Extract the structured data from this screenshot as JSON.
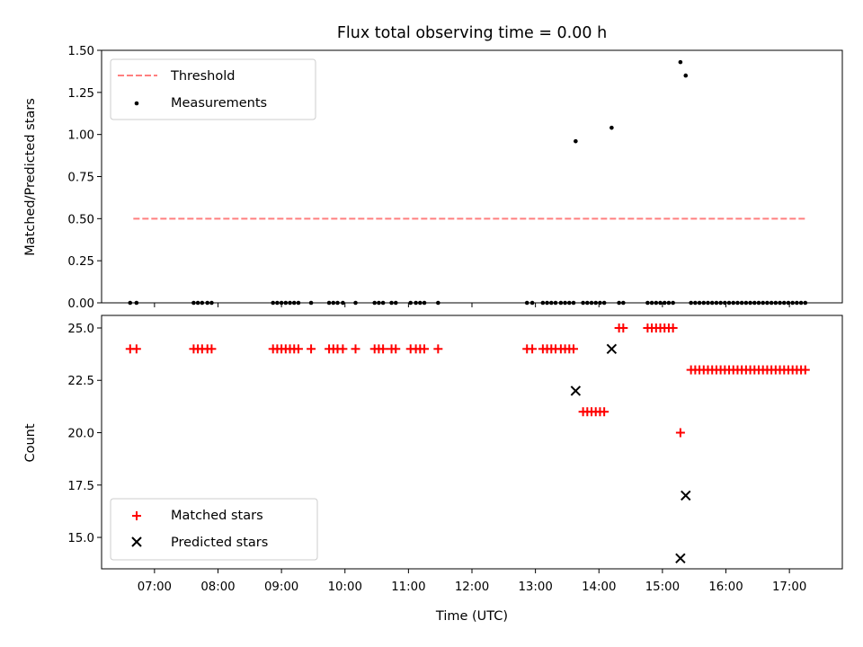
{
  "chart_data": [
    {
      "type": "scatter",
      "title": "Flux total observing time = 0.00 h",
      "xlabel": "",
      "ylabel": "Matched/Predicted stars",
      "xlim": [
        "06:10",
        "17:50"
      ],
      "ylim": [
        0,
        1.5
      ],
      "yticks": [
        "0.00",
        "0.25",
        "0.50",
        "0.75",
        "1.00",
        "1.25",
        "1.50"
      ],
      "legend_position": "top-left",
      "threshold": {
        "name": "Threshold",
        "y": 0.5,
        "x_start": "06:40",
        "x_end": "17:15",
        "color": "#ff7f7f",
        "style": "dashed"
      },
      "series": [
        {
          "name": "Measurements",
          "color": "#000000",
          "points": [
            [
              "06:37",
              0
            ],
            [
              "06:43",
              0
            ],
            [
              "07:37",
              0
            ],
            [
              "07:41",
              0
            ],
            [
              "07:45",
              0
            ],
            [
              "07:50",
              0
            ],
            [
              "07:54",
              0
            ],
            [
              "08:52",
              0
            ],
            [
              "08:56",
              0
            ],
            [
              "09:00",
              0
            ],
            [
              "09:04",
              0
            ],
            [
              "09:08",
              0
            ],
            [
              "09:12",
              0
            ],
            [
              "09:16",
              0
            ],
            [
              "09:28",
              0
            ],
            [
              "09:45",
              0
            ],
            [
              "09:49",
              0
            ],
            [
              "09:53",
              0
            ],
            [
              "09:58",
              0
            ],
            [
              "10:10",
              0
            ],
            [
              "10:28",
              0
            ],
            [
              "10:32",
              0
            ],
            [
              "10:36",
              0
            ],
            [
              "10:44",
              0
            ],
            [
              "10:48",
              0
            ],
            [
              "11:02",
              0
            ],
            [
              "11:07",
              0
            ],
            [
              "11:11",
              0
            ],
            [
              "11:15",
              0
            ],
            [
              "11:28",
              0
            ],
            [
              "12:52",
              0
            ],
            [
              "12:57",
              0
            ],
            [
              "13:07",
              0
            ],
            [
              "13:11",
              0
            ],
            [
              "13:15",
              0
            ],
            [
              "13:19",
              0
            ],
            [
              "13:24",
              0
            ],
            [
              "13:28",
              0
            ],
            [
              "13:32",
              0
            ],
            [
              "13:36",
              0
            ],
            [
              "13:38",
              0.96
            ],
            [
              "13:45",
              0
            ],
            [
              "13:49",
              0
            ],
            [
              "13:53",
              0
            ],
            [
              "13:57",
              0
            ],
            [
              "14:01",
              0
            ],
            [
              "14:05",
              0
            ],
            [
              "14:12",
              1.04
            ],
            [
              "14:19",
              0
            ],
            [
              "14:23",
              0
            ],
            [
              "14:46",
              0
            ],
            [
              "14:50",
              0
            ],
            [
              "14:54",
              0
            ],
            [
              "14:58",
              0
            ],
            [
              "15:02",
              0
            ],
            [
              "15:06",
              0
            ],
            [
              "15:10",
              0
            ],
            [
              "15:17",
              1.43
            ],
            [
              "15:22",
              1.35
            ],
            [
              "15:27",
              0
            ],
            [
              "15:31",
              0
            ],
            [
              "15:35",
              0
            ],
            [
              "15:39",
              0
            ],
            [
              "15:43",
              0
            ],
            [
              "15:47",
              0
            ],
            [
              "15:51",
              0
            ],
            [
              "15:55",
              0
            ],
            [
              "15:59",
              0
            ],
            [
              "16:03",
              0
            ],
            [
              "16:07",
              0
            ],
            [
              "16:11",
              0
            ],
            [
              "16:15",
              0
            ],
            [
              "16:19",
              0
            ],
            [
              "16:23",
              0
            ],
            [
              "16:27",
              0
            ],
            [
              "16:31",
              0
            ],
            [
              "16:35",
              0
            ],
            [
              "16:39",
              0
            ],
            [
              "16:43",
              0
            ],
            [
              "16:47",
              0
            ],
            [
              "16:51",
              0
            ],
            [
              "16:55",
              0
            ],
            [
              "16:59",
              0
            ],
            [
              "17:03",
              0
            ],
            [
              "17:07",
              0
            ],
            [
              "17:11",
              0
            ],
            [
              "17:15",
              0
            ]
          ]
        }
      ]
    },
    {
      "type": "scatter",
      "title": "",
      "xlabel": "Time (UTC)",
      "ylabel": "Count",
      "xlim": [
        "06:10",
        "17:50"
      ],
      "ylim": [
        13.5,
        25.6
      ],
      "yticks": [
        "15.0",
        "17.5",
        "20.0",
        "22.5",
        "25.0"
      ],
      "xticks": [
        "07:00",
        "08:00",
        "09:00",
        "10:00",
        "11:00",
        "12:00",
        "13:00",
        "14:00",
        "15:00",
        "16:00",
        "17:00"
      ],
      "legend_position": "bottom-left",
      "series": [
        {
          "name": "Matched stars",
          "marker": "plus",
          "color": "#ff0000",
          "points": [
            [
              "06:37",
              24
            ],
            [
              "06:43",
              24
            ],
            [
              "07:37",
              24
            ],
            [
              "07:41",
              24
            ],
            [
              "07:45",
              24
            ],
            [
              "07:50",
              24
            ],
            [
              "07:54",
              24
            ],
            [
              "08:52",
              24
            ],
            [
              "08:56",
              24
            ],
            [
              "09:00",
              24
            ],
            [
              "09:04",
              24
            ],
            [
              "09:08",
              24
            ],
            [
              "09:12",
              24
            ],
            [
              "09:16",
              24
            ],
            [
              "09:28",
              24
            ],
            [
              "09:45",
              24
            ],
            [
              "09:49",
              24
            ],
            [
              "09:53",
              24
            ],
            [
              "09:58",
              24
            ],
            [
              "10:10",
              24
            ],
            [
              "10:28",
              24
            ],
            [
              "10:32",
              24
            ],
            [
              "10:36",
              24
            ],
            [
              "10:44",
              24
            ],
            [
              "10:48",
              24
            ],
            [
              "11:02",
              24
            ],
            [
              "11:07",
              24
            ],
            [
              "11:11",
              24
            ],
            [
              "11:15",
              24
            ],
            [
              "11:28",
              24
            ],
            [
              "12:52",
              24
            ],
            [
              "12:57",
              24
            ],
            [
              "13:07",
              24
            ],
            [
              "13:11",
              24
            ],
            [
              "13:15",
              24
            ],
            [
              "13:19",
              24
            ],
            [
              "13:24",
              24
            ],
            [
              "13:28",
              24
            ],
            [
              "13:32",
              24
            ],
            [
              "13:36",
              24
            ],
            [
              "13:45",
              21
            ],
            [
              "13:49",
              21
            ],
            [
              "13:53",
              21
            ],
            [
              "13:57",
              21
            ],
            [
              "14:01",
              21
            ],
            [
              "14:05",
              21
            ],
            [
              "14:19",
              25
            ],
            [
              "14:23",
              25
            ],
            [
              "14:46",
              25
            ],
            [
              "14:50",
              25
            ],
            [
              "14:54",
              25
            ],
            [
              "14:58",
              25
            ],
            [
              "15:02",
              25
            ],
            [
              "15:06",
              25
            ],
            [
              "15:10",
              25
            ],
            [
              "15:17",
              20
            ],
            [
              "15:27",
              23
            ],
            [
              "15:31",
              23
            ],
            [
              "15:35",
              23
            ],
            [
              "15:39",
              23
            ],
            [
              "15:43",
              23
            ],
            [
              "15:47",
              23
            ],
            [
              "15:51",
              23
            ],
            [
              "15:55",
              23
            ],
            [
              "15:59",
              23
            ],
            [
              "16:03",
              23
            ],
            [
              "16:07",
              23
            ],
            [
              "16:11",
              23
            ],
            [
              "16:15",
              23
            ],
            [
              "16:19",
              23
            ],
            [
              "16:23",
              23
            ],
            [
              "16:27",
              23
            ],
            [
              "16:31",
              23
            ],
            [
              "16:35",
              23
            ],
            [
              "16:39",
              23
            ],
            [
              "16:43",
              23
            ],
            [
              "16:47",
              23
            ],
            [
              "16:51",
              23
            ],
            [
              "16:55",
              23
            ],
            [
              "16:59",
              23
            ],
            [
              "17:03",
              23
            ],
            [
              "17:07",
              23
            ],
            [
              "17:11",
              23
            ],
            [
              "17:15",
              23
            ]
          ]
        },
        {
          "name": "Predicted stars",
          "marker": "x",
          "color": "#000000",
          "points": [
            [
              "13:38",
              22
            ],
            [
              "14:12",
              24
            ],
            [
              "15:17",
              14
            ],
            [
              "15:22",
              17
            ]
          ]
        }
      ]
    }
  ]
}
